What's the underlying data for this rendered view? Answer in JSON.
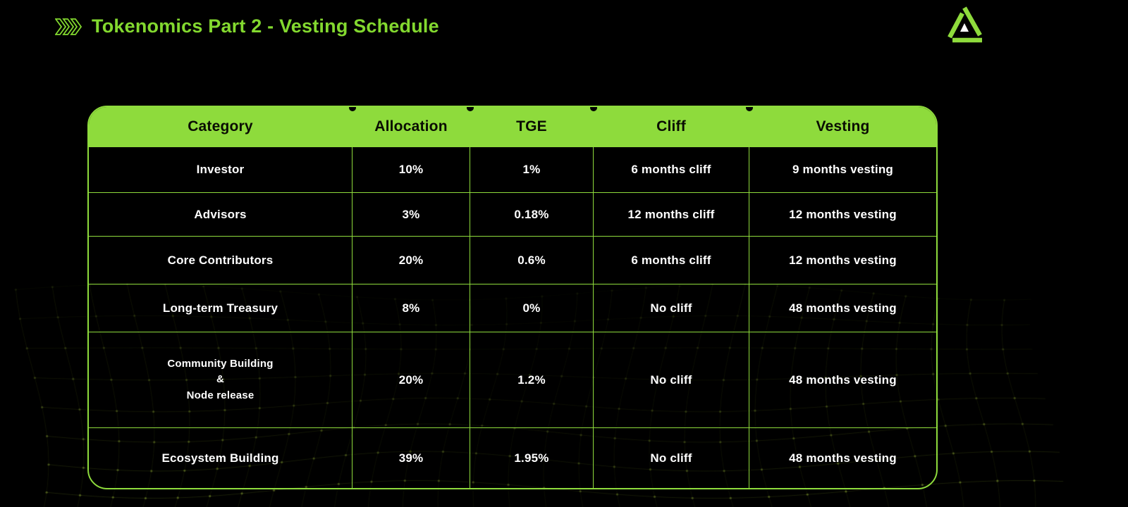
{
  "page": {
    "background_color": "#000000",
    "accent_green": "#8edb3c",
    "title_color": "#83d92f",
    "header_text_color": "#0a0d03",
    "cell_text_color": "#ffffff",
    "mesh_color": "#7d9628"
  },
  "header": {
    "title": "Tokenomics Part 2 - Vesting Schedule",
    "chevron_icon": "triple-chevron-right",
    "logo_icon": "triangle-brand-logo"
  },
  "table": {
    "columns": [
      "Category",
      "Allocation",
      "TGE",
      "Cliff",
      "Vesting"
    ],
    "rows": [
      {
        "category": "Investor",
        "allocation": "10%",
        "tge": "1%",
        "cliff": "6 months cliff",
        "vesting": "9 months vesting"
      },
      {
        "category": "Advisors",
        "allocation": "3%",
        "tge": "0.18%",
        "cliff": "12 months cliff",
        "vesting": "12 months vesting"
      },
      {
        "category": "Core Contributors",
        "allocation": "20%",
        "tge": "0.6%",
        "cliff": "6 months cliff",
        "vesting": "12 months vesting"
      },
      {
        "category": "Long-term Treasury",
        "allocation": "8%",
        "tge": "0%",
        "cliff": "No cliff",
        "vesting": "48 months vesting"
      },
      {
        "category": "Community Building\n&\nNode release",
        "allocation": "20%",
        "tge": "1.2%",
        "cliff": "No cliff",
        "vesting": "48 months vesting"
      },
      {
        "category": "Ecosystem Building",
        "allocation": "39%",
        "tge": "1.95%",
        "cliff": "No cliff",
        "vesting": "48 months vesting"
      }
    ]
  }
}
